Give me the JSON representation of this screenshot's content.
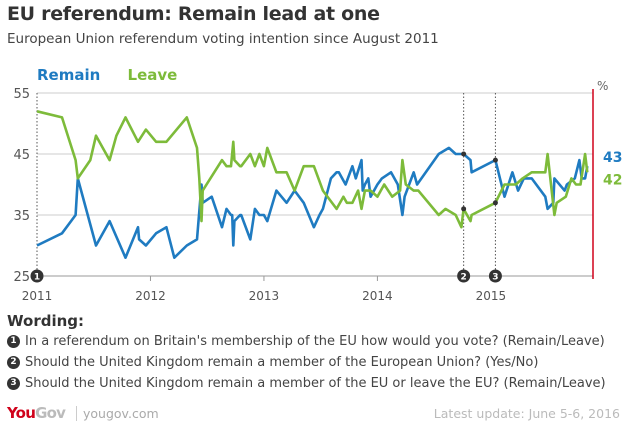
{
  "title": "EU referendum: Remain lead at one",
  "subtitle": "European Union referendum voting intention since August 2011",
  "wording": {
    "heading": "Wording:",
    "items": [
      {
        "num": "1",
        "text": "In a referendum on Britain's membership of the EU how would you vote? (Remain/Leave)"
      },
      {
        "num": "2",
        "text": "Should the United Kingdom remain a member of the European Union? (Yes/No)"
      },
      {
        "num": "3",
        "text": "Should the United Kingdom remain a member of the EU or leave the EU? (Remain/Leave)"
      }
    ]
  },
  "footer": {
    "logo": "YouGov",
    "site": "yougov.com",
    "update": "Latest update: June  5-6, 2016"
  },
  "chart_data": {
    "type": "line",
    "xlabel": "",
    "ylabel": "%",
    "xlim": [
      2011,
      2015.9
    ],
    "ylim": [
      25,
      55
    ],
    "yticks": [
      25,
      35,
      45,
      55
    ],
    "xticks": [
      2011,
      2012,
      2013,
      2014,
      2015
    ],
    "grid": true,
    "legend": "top-left",
    "current_marker_color": "#d0021b",
    "series": [
      {
        "name": "Remain",
        "color": "#1f7bc1",
        "end_label": "43",
        "x": [
          2011.0,
          2011.22,
          2011.34,
          2011.36,
          2011.52,
          2011.64,
          2011.78,
          2011.89,
          2011.9,
          2011.96,
          2012.05,
          2012.14,
          2012.21,
          2012.32,
          2012.41,
          2012.45,
          2012.46,
          2012.54,
          2012.63,
          2012.67,
          2012.71,
          2012.72,
          2012.73,
          2012.74,
          2012.79,
          2012.8,
          2012.88,
          2012.92,
          2012.96,
          2013.0,
          2013.03,
          2013.11,
          2013.2,
          2013.27,
          2013.35,
          2013.44,
          2013.49,
          2013.52,
          2013.59,
          2013.64,
          2013.66,
          2013.72,
          2013.78,
          2013.81,
          2013.86,
          2013.87,
          2013.89,
          2013.92,
          2013.94,
          2014.0,
          2014.04,
          2014.12,
          2014.18,
          2014.22,
          2014.24,
          2014.32,
          2014.35,
          2014.54,
          2014.63,
          2014.69,
          2014.76,
          2014.82,
          2014.83,
          2015.04,
          2015.12,
          2015.19,
          2015.24,
          2015.29,
          2015.36,
          2015.48,
          2015.5,
          2015.55,
          2015.56,
          2015.65,
          2015.67,
          2015.74,
          2015.78,
          2015.8,
          2015.83,
          2015.85
        ],
        "values": [
          30,
          32,
          35,
          41,
          30,
          34,
          28,
          33,
          31,
          30,
          32,
          33,
          28,
          30,
          31,
          40,
          37,
          38,
          33,
          36,
          35,
          35,
          30,
          34,
          35,
          35,
          31,
          36,
          35,
          35,
          34,
          39,
          37,
          39,
          37,
          33,
          35,
          36,
          41,
          42,
          42,
          40,
          43,
          41,
          44,
          39,
          40,
          41,
          38,
          40,
          41,
          42,
          40,
          35,
          38,
          42,
          40,
          45,
          46,
          45,
          45,
          44,
          42,
          44,
          38,
          42,
          39,
          41,
          41,
          38,
          36,
          37,
          41,
          39,
          40,
          41,
          44,
          41,
          41,
          43
        ]
      },
      {
        "name": "Leave",
        "color": "#7dbb3a",
        "end_label": "42",
        "x": [
          2011.0,
          2011.22,
          2011.34,
          2011.36,
          2011.47,
          2011.52,
          2011.64,
          2011.7,
          2011.78,
          2011.89,
          2011.96,
          2012.05,
          2012.14,
          2012.32,
          2012.41,
          2012.43,
          2012.45,
          2012.46,
          2012.63,
          2012.67,
          2012.71,
          2012.73,
          2012.74,
          2012.79,
          2012.8,
          2012.88,
          2012.92,
          2012.96,
          2013.0,
          2013.03,
          2013.11,
          2013.2,
          2013.27,
          2013.35,
          2013.44,
          2013.52,
          2013.64,
          2013.7,
          2013.73,
          2013.78,
          2013.83,
          2013.86,
          2013.89,
          2013.94,
          2014.0,
          2014.06,
          2014.13,
          2014.2,
          2014.22,
          2014.25,
          2014.32,
          2014.36,
          2014.54,
          2014.6,
          2014.69,
          2014.74,
          2014.76,
          2014.82,
          2014.83,
          2015.04,
          2015.12,
          2015.22,
          2015.28,
          2015.36,
          2015.48,
          2015.5,
          2015.56,
          2015.58,
          2015.66,
          2015.71,
          2015.75,
          2015.79,
          2015.83,
          2015.85
        ],
        "values": [
          52,
          51,
          44,
          41,
          44,
          48,
          44,
          48,
          51,
          47,
          49,
          47,
          47,
          51,
          46,
          41,
          34,
          39,
          44,
          43,
          43,
          47,
          44,
          43,
          43,
          45,
          43,
          45,
          43,
          46,
          42,
          42,
          39,
          43,
          43,
          39,
          36,
          38,
          37,
          37,
          39,
          36,
          39,
          39,
          38,
          40,
          38,
          39,
          44,
          40,
          39,
          39,
          35,
          36,
          35,
          33,
          36,
          34,
          35,
          37,
          40,
          40,
          41,
          42,
          42,
          45,
          35,
          37,
          38,
          41,
          40,
          40,
          45,
          42
        ]
      }
    ],
    "question_markers": [
      {
        "label": "1",
        "x": 2011.0
      },
      {
        "label": "2",
        "x": 2014.76,
        "points": [
          45,
          36
        ]
      },
      {
        "label": "3",
        "x": 2015.04,
        "points": [
          44,
          37
        ]
      }
    ]
  }
}
